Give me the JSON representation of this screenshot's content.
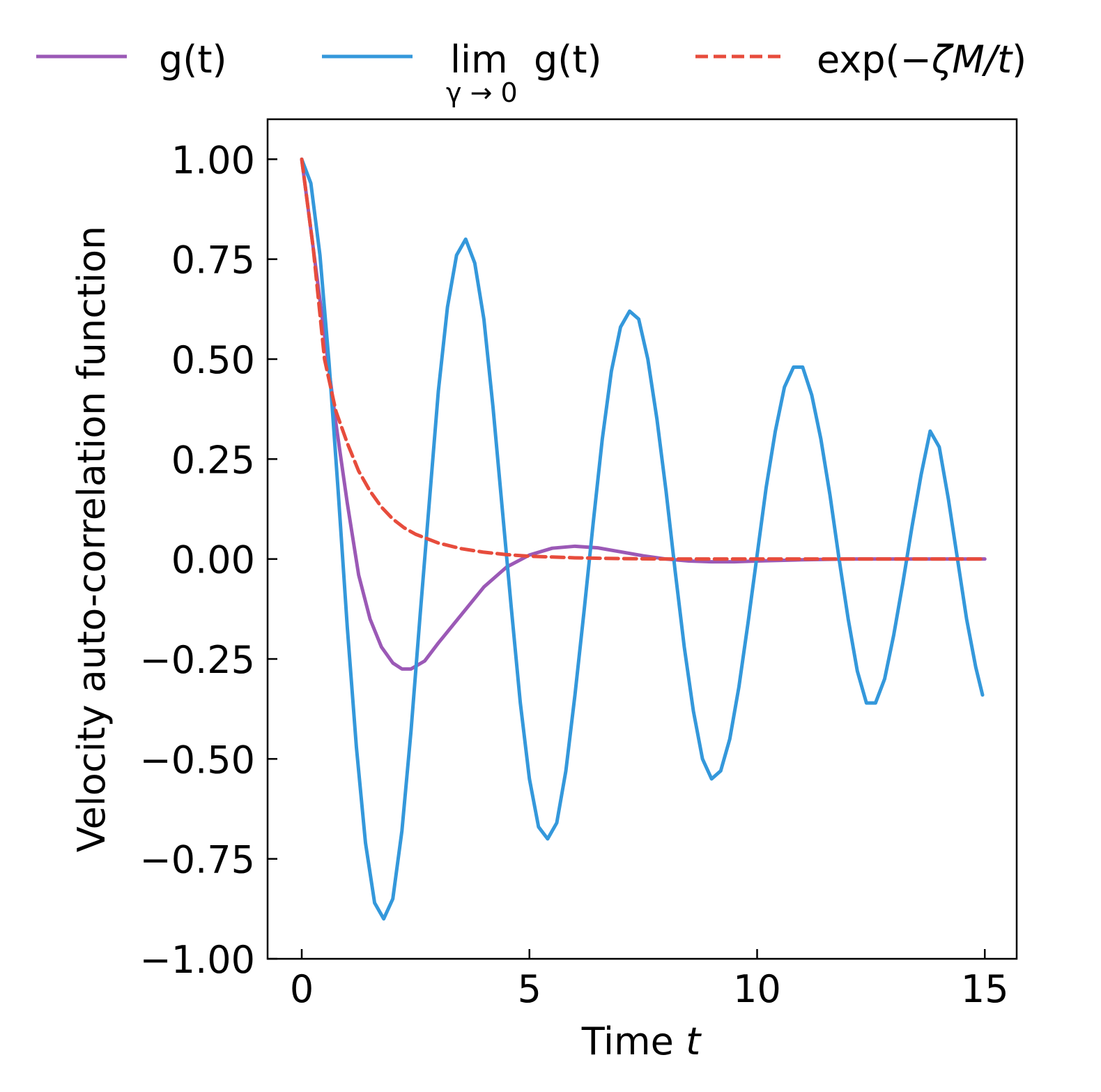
{
  "chart_data": {
    "type": "line",
    "xlabel": "Time",
    "xlabel_var": "t",
    "ylabel": "Velocity auto-correlation function",
    "xlim": [
      -0.75,
      15.7
    ],
    "ylim": [
      -1.0,
      1.1
    ],
    "xticks": [
      0,
      5,
      10,
      15
    ],
    "xtick_labels": [
      "0",
      "5",
      "10",
      "15"
    ],
    "yticks": [
      1.0,
      0.75,
      0.5,
      0.25,
      0.0,
      -0.25,
      -0.5,
      -0.75,
      -1.0
    ],
    "ytick_labels": [
      "1.00",
      "0.75",
      "0.50",
      "0.25",
      "0.00",
      "−0.25",
      "−0.50",
      "−0.75",
      "−1.00"
    ],
    "grid": false,
    "tick_direction": "in",
    "legend": {
      "placement": "top-outside",
      "entries": [
        {
          "label": "g(t)",
          "color": "#9b59b6",
          "style": "solid"
        },
        {
          "label": "lim",
          "label_tail": "g(t)",
          "subscript": "γ → 0",
          "color": "#3498db",
          "style": "solid"
        },
        {
          "label": "exp(−ζM/t)",
          "label_prefix": "exp(−",
          "label_italic": "ζM/t",
          "label_suffix": ")",
          "color": "#e74c3c",
          "style": "dashed"
        }
      ]
    },
    "series": [
      {
        "name": "g(t)",
        "color": "#9b59b6",
        "style": "solid",
        "x": [
          0,
          0.25,
          0.5,
          0.75,
          1.0,
          1.25,
          1.5,
          1.75,
          2.0,
          2.2,
          2.4,
          2.7,
          3.0,
          3.5,
          4.0,
          4.5,
          5.0,
          5.5,
          6.0,
          6.5,
          7.0,
          7.5,
          8.0,
          8.5,
          9.0,
          9.5,
          10.0,
          11.0,
          12.0,
          13.0,
          14.0,
          15.0
        ],
        "y": [
          1.0,
          0.78,
          0.56,
          0.34,
          0.14,
          -0.04,
          -0.15,
          -0.22,
          -0.26,
          -0.275,
          -0.275,
          -0.255,
          -0.21,
          -0.14,
          -0.07,
          -0.02,
          0.01,
          0.027,
          0.032,
          0.028,
          0.018,
          0.008,
          0.0,
          -0.005,
          -0.007,
          -0.007,
          -0.005,
          -0.002,
          0.0,
          0.0,
          0.0,
          0.0
        ]
      },
      {
        "name": "lim g(t) (γ → 0)",
        "color": "#3498db",
        "style": "solid",
        "x": [
          0,
          0.2,
          0.4,
          0.6,
          0.8,
          1.0,
          1.2,
          1.4,
          1.6,
          1.8,
          2.0,
          2.2,
          2.4,
          2.6,
          2.8,
          3.0,
          3.2,
          3.4,
          3.6,
          3.8,
          4.0,
          4.2,
          4.4,
          4.6,
          4.8,
          5.0,
          5.2,
          5.4,
          5.6,
          5.8,
          6.0,
          6.2,
          6.4,
          6.6,
          6.8,
          7.0,
          7.2,
          7.4,
          7.6,
          7.8,
          8.0,
          8.2,
          8.4,
          8.6,
          8.8,
          9.0,
          9.2,
          9.4,
          9.6,
          9.8,
          10.0,
          10.2,
          10.4,
          10.6,
          10.8,
          11.0,
          11.2,
          11.4,
          11.6,
          11.8,
          12.0,
          12.2,
          12.4,
          12.6,
          12.8,
          13.0,
          13.2,
          13.4,
          13.6,
          13.8,
          14.0,
          14.2,
          14.4,
          14.6,
          14.8,
          14.95
        ],
        "y": [
          1.0,
          0.94,
          0.76,
          0.49,
          0.17,
          -0.17,
          -0.47,
          -0.71,
          -0.86,
          -0.9,
          -0.85,
          -0.68,
          -0.43,
          -0.14,
          0.14,
          0.42,
          0.63,
          0.76,
          0.8,
          0.74,
          0.6,
          0.38,
          0.13,
          -0.12,
          -0.36,
          -0.55,
          -0.67,
          -0.7,
          -0.66,
          -0.53,
          -0.34,
          -0.13,
          0.09,
          0.3,
          0.47,
          0.58,
          0.62,
          0.6,
          0.5,
          0.35,
          0.17,
          -0.03,
          -0.22,
          -0.38,
          -0.5,
          -0.55,
          -0.53,
          -0.45,
          -0.32,
          -0.16,
          0.01,
          0.18,
          0.32,
          0.43,
          0.48,
          0.48,
          0.41,
          0.3,
          0.16,
          0.0,
          -0.15,
          -0.28,
          -0.36,
          -0.36,
          -0.3,
          -0.19,
          -0.06,
          0.08,
          0.21,
          0.32,
          0.28,
          0.15,
          0.0,
          -0.15,
          -0.27,
          -0.34
        ]
      },
      {
        "name": "exp(−ζM/t)",
        "color": "#e74c3c",
        "style": "dashed",
        "x": [
          0,
          0.25,
          0.5,
          0.75,
          1.0,
          1.25,
          1.5,
          1.75,
          2.0,
          2.25,
          2.5,
          3.0,
          3.5,
          4.0,
          4.5,
          5.0,
          5.5,
          6.0,
          7.0,
          8.0,
          9.0,
          10.0,
          11.0,
          12.0,
          13.0,
          14.0,
          15.0
        ],
        "y": [
          1.0,
          0.78,
          0.5,
          0.37,
          0.29,
          0.22,
          0.17,
          0.13,
          0.1,
          0.078,
          0.062,
          0.04,
          0.026,
          0.017,
          0.011,
          0.007,
          0.005,
          0.003,
          0.001,
          0.0,
          0.0,
          0.0,
          0.0,
          0.0,
          0.0,
          0.0,
          0.0
        ]
      }
    ]
  }
}
